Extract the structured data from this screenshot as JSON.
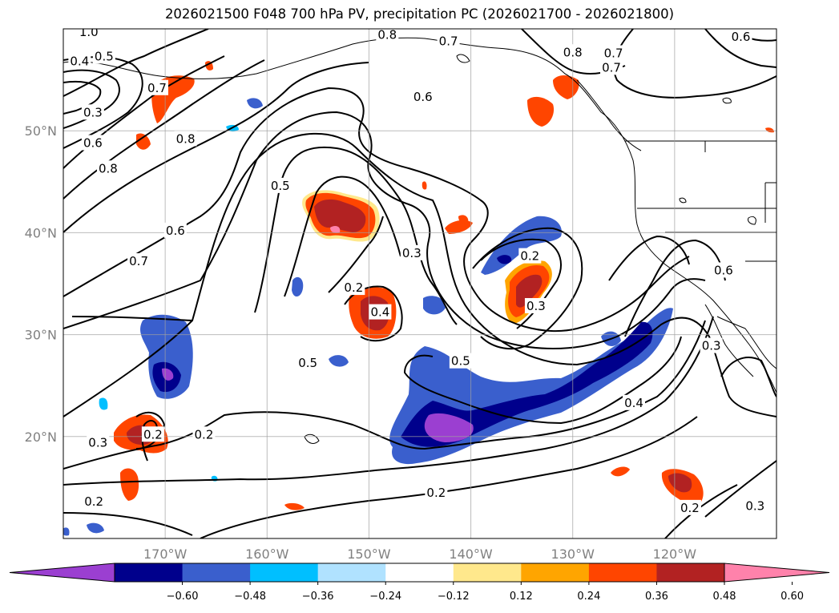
{
  "title": "2026021500 F048 700 hPa PV, precipitation PC (2026021700 - 2026021800)",
  "map": {
    "extent": {
      "lon": [
        -180,
        -110
      ],
      "lat": [
        10,
        60
      ]
    },
    "lon_ticks": [
      {
        "lon": -170,
        "label": "170°W"
      },
      {
        "lon": -160,
        "label": "160°W"
      },
      {
        "lon": -150,
        "label": "150°W"
      },
      {
        "lon": -140,
        "label": "140°W"
      },
      {
        "lon": -130,
        "label": "130°W"
      },
      {
        "lon": -120,
        "label": "120°W"
      }
    ],
    "lat_ticks": [
      {
        "lat": 20,
        "label": "20°N"
      },
      {
        "lat": 30,
        "label": "30°N"
      },
      {
        "lat": 40,
        "label": "40°N"
      },
      {
        "lat": 50,
        "label": "50°N"
      }
    ],
    "gridlines": true,
    "contour_labels": [
      {
        "lon": -177.5,
        "lat": 59.7,
        "text": "1.0"
      },
      {
        "lon": -178.4,
        "lat": 56.8,
        "text": "0.4"
      },
      {
        "lon": -176.0,
        "lat": 57.3,
        "text": "0.5"
      },
      {
        "lon": -177.1,
        "lat": 51.8,
        "text": "0.3"
      },
      {
        "lon": -177.1,
        "lat": 48.8,
        "text": "0.6"
      },
      {
        "lon": -175.6,
        "lat": 46.3,
        "text": "0.8"
      },
      {
        "lon": -170.8,
        "lat": 54.2,
        "text": "0.7"
      },
      {
        "lon": -168.0,
        "lat": 49.2,
        "text": "0.8"
      },
      {
        "lon": -169.0,
        "lat": 40.2,
        "text": "0.6"
      },
      {
        "lon": -172.6,
        "lat": 37.2,
        "text": "0.7"
      },
      {
        "lon": -158.7,
        "lat": 44.6,
        "text": "0.5"
      },
      {
        "lon": -145.8,
        "lat": 38.0,
        "text": "0.3"
      },
      {
        "lon": -151.5,
        "lat": 34.6,
        "text": "0.2"
      },
      {
        "lon": -148.9,
        "lat": 32.2,
        "text": "0.4"
      },
      {
        "lon": -156.0,
        "lat": 27.2,
        "text": "0.5"
      },
      {
        "lon": -141.0,
        "lat": 27.4,
        "text": "0.5"
      },
      {
        "lon": -134.2,
        "lat": 37.7,
        "text": "0.2"
      },
      {
        "lon": -133.6,
        "lat": 32.8,
        "text": "0.3"
      },
      {
        "lon": -142.2,
        "lat": 58.8,
        "text": "0.7"
      },
      {
        "lon": -148.2,
        "lat": 59.4,
        "text": "0.8"
      },
      {
        "lon": -130.0,
        "lat": 57.7,
        "text": "0.8"
      },
      {
        "lon": -126.0,
        "lat": 57.6,
        "text": "0.7"
      },
      {
        "lon": -144.7,
        "lat": 53.3,
        "text": "0.6"
      },
      {
        "lon": -126.2,
        "lat": 56.2,
        "text": "0.7"
      },
      {
        "lon": -113.5,
        "lat": 59.2,
        "text": "0.6"
      },
      {
        "lon": -115.2,
        "lat": 36.3,
        "text": "0.6"
      },
      {
        "lon": -116.4,
        "lat": 28.9,
        "text": "0.3"
      },
      {
        "lon": -124.0,
        "lat": 23.3,
        "text": "0.4"
      },
      {
        "lon": -171.2,
        "lat": 20.2,
        "text": "0.2"
      },
      {
        "lon": -176.6,
        "lat": 19.4,
        "text": "0.3"
      },
      {
        "lon": -166.2,
        "lat": 20.2,
        "text": "0.2"
      },
      {
        "lon": -143.4,
        "lat": 14.5,
        "text": "0.2"
      },
      {
        "lon": -177.0,
        "lat": 13.6,
        "text": "0.2"
      },
      {
        "lon": -118.5,
        "lat": 13.0,
        "text": "0.2"
      },
      {
        "lon": -112.1,
        "lat": 13.2,
        "text": "0.3"
      }
    ]
  },
  "colorbar": {
    "ticks": [
      "−0.60",
      "−0.48",
      "−0.36",
      "−0.24",
      "−0.12",
      "0.12",
      "0.24",
      "0.36",
      "0.48",
      "0.60"
    ],
    "colors": [
      "#9b3fd1",
      "#00008c",
      "#3a5fcd",
      "#00bfff",
      "#b0e2ff",
      "#ffffff",
      "#ffe88c",
      "#ffa500",
      "#ff4500",
      "#b22222",
      "#ff82ab"
    ],
    "extend": "both"
  }
}
